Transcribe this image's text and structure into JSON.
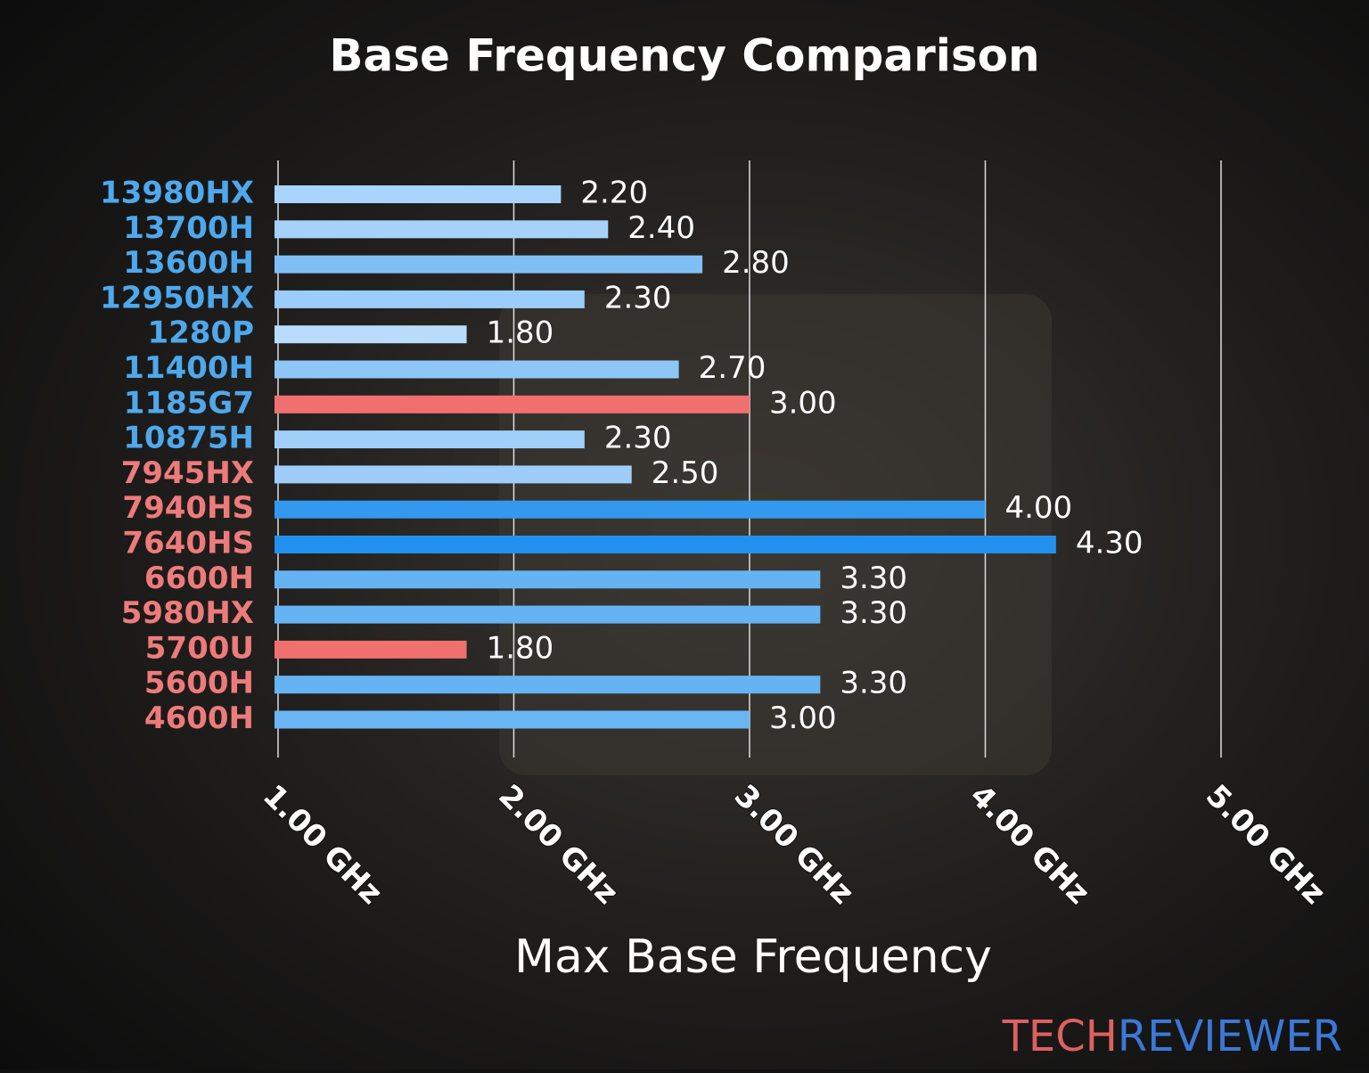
{
  "chart_data": {
    "type": "barh",
    "title": "Base Frequency Comparison",
    "xlabel": "Max Base Frequency",
    "categories": [
      "13980HX",
      "13700H",
      "13600H",
      "12950HX",
      "1280P",
      "11400H",
      "1185G7",
      "10875H",
      "7945HX",
      "7940HS",
      "7640HS",
      "6600H",
      "5980HX",
      "5700U",
      "5600H",
      "4600H"
    ],
    "values": [
      2.2,
      2.4,
      2.8,
      2.3,
      1.8,
      2.7,
      3.0,
      2.3,
      2.5,
      4.0,
      4.3,
      3.3,
      3.3,
      1.8,
      3.3,
      3.0
    ],
    "value_labels": [
      "2.20",
      "2.40",
      "2.80",
      "2.30",
      "1.80",
      "2.70",
      "3.00",
      "2.30",
      "2.50",
      "4.00",
      "4.30",
      "3.30",
      "3.30",
      "1.80",
      "3.30",
      "3.00"
    ],
    "colors": [
      "#a9d4fb",
      "#a6d2fa",
      "#7fbff5",
      "#9acdfa",
      "#b9dcfb",
      "#8ec7f7",
      "#f07070",
      "#a0d0fa",
      "#9dcdf8",
      "#3399ee",
      "#2290ee",
      "#66b3f3",
      "#66b3f3",
      "#f07070",
      "#66b3f3",
      "#6ab5f3"
    ],
    "label_colors": [
      "#4fa8ec",
      "#4fa8ec",
      "#4fa8ec",
      "#4fa8ec",
      "#4fa8ec",
      "#4fa8ec",
      "#4fa8ec",
      "#4fa8ec",
      "#ee7b7b",
      "#ee7b7b",
      "#ee7b7b",
      "#ee7b7b",
      "#ee7b7b",
      "#ee7b7b",
      "#ee7b7b",
      "#ee7b7b"
    ],
    "xlim": [
      0.985,
      5.0
    ],
    "xticks": [
      {
        "value": 1,
        "label": "1.00 GHz"
      },
      {
        "value": 2,
        "label": "2.00 GHz"
      },
      {
        "value": 3,
        "label": "3.00 GHz"
      },
      {
        "value": 4,
        "label": "4.00 GHz"
      },
      {
        "value": 5,
        "label": "5.00 GHz"
      }
    ],
    "grid": true
  },
  "brand": {
    "tech": "TECH",
    "reviewer": "REVIEWER"
  }
}
